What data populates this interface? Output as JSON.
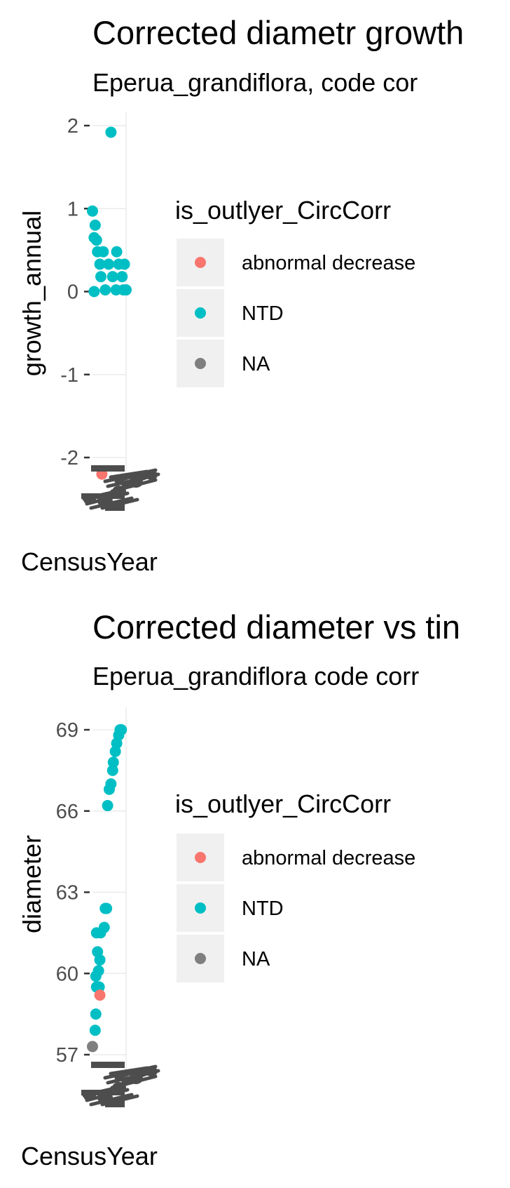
{
  "colors": {
    "abnormal_decrease": "#F8766D",
    "NTD": "#00BFC4",
    "NA": "#7F7F7F",
    "legend_key_bg": "#F0F0F0",
    "tick_text": "#4D4D4D",
    "overlap_ink": "#4D4D4D"
  },
  "chart_data": [
    {
      "type": "scatter",
      "title": "Corrected diametr growth",
      "subtitle": "Eperua_grandiflora, code cor",
      "xlabel": "CensusYear",
      "ylabel": "growth_annual",
      "y_ticks": [
        "2",
        "1",
        "0",
        "-1",
        "-2"
      ],
      "y_tick_values": [
        2,
        1,
        0,
        -1,
        -2
      ],
      "ylim": [
        -2.55,
        2.05
      ],
      "grid": true,
      "x_tick_labels": "overlapping, illegible",
      "legend": {
        "title": "is_outlyer_CircCorr",
        "position": "right",
        "entries": [
          {
            "label": "abnormal decrease",
            "color_key": "abnormal_decrease"
          },
          {
            "label": "NTD",
            "color_key": "NTD"
          },
          {
            "label": "NA",
            "color_key": "NA"
          }
        ]
      },
      "series": [
        {
          "name": "NTD",
          "points": [
            [
              0.55,
              1.92
            ],
            [
              0.0,
              0.97
            ],
            [
              0.08,
              0.8
            ],
            [
              0.05,
              0.65
            ],
            [
              0.12,
              0.62
            ],
            [
              0.15,
              0.48
            ],
            [
              0.32,
              0.48
            ],
            [
              0.72,
              0.48
            ],
            [
              0.22,
              0.33
            ],
            [
              0.48,
              0.33
            ],
            [
              0.78,
              0.33
            ],
            [
              0.95,
              0.33
            ],
            [
              0.25,
              0.18
            ],
            [
              0.6,
              0.18
            ],
            [
              0.88,
              0.18
            ],
            [
              0.38,
              0.02
            ],
            [
              0.7,
              0.02
            ],
            [
              0.92,
              0.02
            ],
            [
              1.0,
              0.02
            ],
            [
              0.05,
              0.0
            ]
          ]
        },
        {
          "name": "abnormal decrease",
          "points": [
            [
              0.28,
              -2.2
            ]
          ]
        }
      ]
    },
    {
      "type": "scatter",
      "title": "Corrected diameter vs tin",
      "subtitle": "Eperua_grandiflora code corr",
      "xlabel": "CensusYear",
      "ylabel": "diameter",
      "y_ticks": [
        "69",
        "66",
        "63",
        "60",
        "57"
      ],
      "y_tick_values": [
        69,
        66,
        63,
        60,
        57
      ],
      "ylim": [
        56.2,
        69.3
      ],
      "grid": true,
      "x_tick_labels": "overlapping, illegible",
      "legend": {
        "title": "is_outlyer_CircCorr",
        "position": "right",
        "entries": [
          {
            "label": "abnormal decrease",
            "color_key": "abnormal_decrease"
          },
          {
            "label": "NTD",
            "color_key": "NTD"
          },
          {
            "label": "NA",
            "color_key": "NA"
          }
        ]
      },
      "series": [
        {
          "name": "NA",
          "points": [
            [
              0.0,
              57.3
            ]
          ]
        },
        {
          "name": "NTD",
          "points": [
            [
              0.08,
              57.9
            ],
            [
              0.1,
              58.5
            ],
            [
              0.12,
              59.5
            ],
            [
              0.2,
              59.5
            ],
            [
              0.1,
              59.9
            ],
            [
              0.18,
              60.1
            ],
            [
              0.22,
              60.5
            ],
            [
              0.15,
              60.8
            ],
            [
              0.12,
              61.5
            ],
            [
              0.24,
              61.5
            ],
            [
              0.35,
              61.7
            ],
            [
              0.38,
              62.4
            ],
            [
              0.42,
              62.4
            ],
            [
              0.45,
              66.2
            ],
            [
              0.5,
              66.8
            ],
            [
              0.55,
              67.0
            ],
            [
              0.6,
              67.5
            ],
            [
              0.62,
              67.8
            ],
            [
              0.68,
              68.2
            ],
            [
              0.72,
              68.5
            ],
            [
              0.78,
              68.8
            ],
            [
              0.82,
              69.0
            ],
            [
              0.86,
              69.0
            ]
          ]
        },
        {
          "name": "abnormal decrease",
          "points": [
            [
              0.22,
              59.2
            ]
          ]
        }
      ]
    }
  ]
}
